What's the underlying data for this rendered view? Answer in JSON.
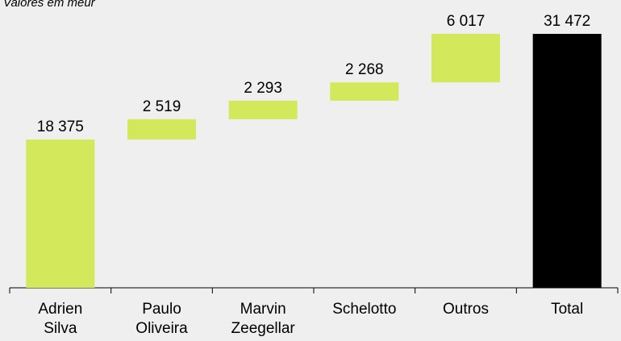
{
  "chart_data": {
    "type": "waterfall",
    "subtitle": "Valores em meur",
    "categories": [
      "Adrien Silva",
      "Paulo Oliveira",
      "Marvin Zeegellar",
      "Schelotto",
      "Outros",
      "Total"
    ],
    "values": [
      18375,
      2519,
      2293,
      2268,
      6017,
      31472
    ],
    "value_labels": [
      "18 375",
      "2 519",
      "2 293",
      "2 268",
      "6 017",
      "31 472"
    ],
    "color": "#d4e85c",
    "total_color": "#000000"
  }
}
